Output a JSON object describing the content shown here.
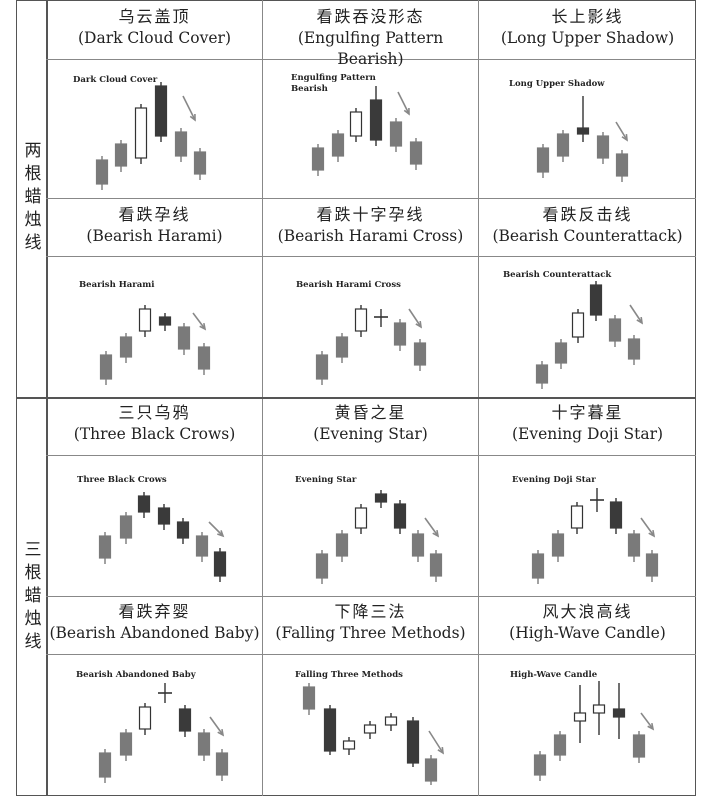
{
  "sections": [
    {
      "label": "两根蜡烛线"
    },
    {
      "label": "三根蜡烛线"
    }
  ],
  "patterns": [
    {
      "zh": "乌云盖顶",
      "en": "(Dark Cloud Cover)",
      "chart_label": "Dark Cloud Cover"
    },
    {
      "zh": "看跌吞没形态",
      "en": "(Engulfing Pattern Bearish)",
      "chart_label": "Engulfing Pattern Bearish"
    },
    {
      "zh": "长上影线",
      "en": "(Long Upper Shadow)",
      "chart_label": "Long Upper Shadow"
    },
    {
      "zh": "看跌孕线",
      "en": "(Bearish Harami)",
      "chart_label": "Bearish Harami"
    },
    {
      "zh": "看跌十字孕线",
      "en": "(Bearish Harami Cross)",
      "chart_label": "Bearish Harami Cross"
    },
    {
      "zh": "看跌反击线",
      "en": "(Bearish Counterattack)",
      "chart_label": "Bearish Counterattack"
    },
    {
      "zh": "三只乌鸦",
      "en": "(Three Black Crows)",
      "chart_label": "Three Black Crows"
    },
    {
      "zh": "黄昏之星",
      "en": "(Evening Star)",
      "chart_label": "Evening Star"
    },
    {
      "zh": "十字暮星",
      "en": "(Evening Doji Star)",
      "chart_label": "Evening Doji Star"
    },
    {
      "zh": "看跌弃婴",
      "en": "(Bearish Abandoned Baby)",
      "chart_label": "Bearish Abandoned Baby"
    },
    {
      "zh": "下降三法",
      "en": "(Falling Three Methods)",
      "chart_label": "Falling Three Methods"
    },
    {
      "zh": "风大浪高线",
      "en": "(High-Wave Candle)",
      "chart_label": "High-Wave Candle"
    }
  ],
  "colors": {
    "gray_candle": "#7a7a7a",
    "dark_candle": "#3a3a3a",
    "white_candle": "#ffffff",
    "arrow": "#888888"
  }
}
